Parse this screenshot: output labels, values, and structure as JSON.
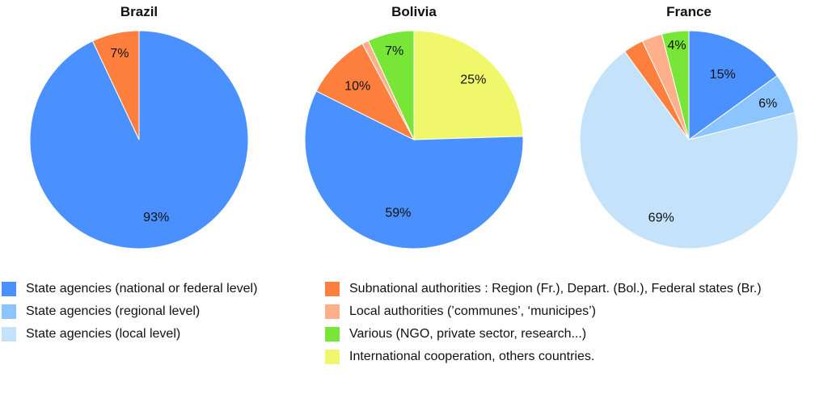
{
  "colors": {
    "state_national": "#4a90ff",
    "state_regional": "#8cc4ff",
    "state_local": "#c4e3fb",
    "subnational": "#ff7f3f",
    "local_authorities": "#ffb08a",
    "various": "#77e637",
    "international": "#f1f76a"
  },
  "legend": {
    "left": [
      {
        "key": "state_national",
        "label": "State agencies (national or federal level)"
      },
      {
        "key": "state_regional",
        "label": "State agencies (regional level)"
      },
      {
        "key": "state_local",
        "label": "State agencies (local level)"
      }
    ],
    "right": [
      {
        "key": "subnational",
        "label": "Subnational authorities : Region (Fr.), Depart. (Bol.), Federal states (Br.)"
      },
      {
        "key": "local_authorities",
        "label": "Local authorities (’communes’, ‘municipes’)"
      },
      {
        "key": "various",
        "label": "Various (NGO, private sector, research...)"
      },
      {
        "key": "international",
        "label": "International cooperation, others countries."
      }
    ]
  },
  "chart_data": [
    {
      "type": "pie",
      "title": "Brazil",
      "slices": [
        {
          "key": "state_national",
          "value": 93,
          "label": "93%"
        },
        {
          "key": "subnational",
          "value": 7,
          "label": "7%"
        }
      ]
    },
    {
      "type": "pie",
      "title": "Bolivia",
      "slices": [
        {
          "key": "international",
          "value": 25,
          "label": "25%"
        },
        {
          "key": "state_national",
          "value": 59,
          "label": "59%"
        },
        {
          "key": "subnational",
          "value": 10,
          "label": "10%"
        },
        {
          "key": "local_authorities",
          "value": 1,
          "label": ""
        },
        {
          "key": "various",
          "value": 7,
          "label": "7%"
        }
      ]
    },
    {
      "type": "pie",
      "title": "France",
      "slices": [
        {
          "key": "state_national",
          "value": 15,
          "label": "15%"
        },
        {
          "key": "state_regional",
          "value": 6,
          "label": "6%"
        },
        {
          "key": "state_local",
          "value": 69,
          "label": "69%"
        },
        {
          "key": "subnational",
          "value": 3,
          "label": ""
        },
        {
          "key": "local_authorities",
          "value": 3,
          "label": ""
        },
        {
          "key": "various",
          "value": 4,
          "label": "4%"
        }
      ]
    }
  ]
}
